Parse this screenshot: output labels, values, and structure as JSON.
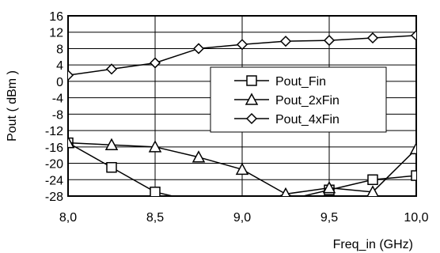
{
  "chart_data": {
    "type": "line",
    "xlabel": "Freq_in (GHz)",
    "ylabel": "Pout ( dBm )",
    "xlim": [
      8.0,
      10.0
    ],
    "ylim": [
      -28,
      16
    ],
    "x_ticks": [
      "8,0",
      "8,5",
      "9,0",
      "9,5",
      "10,0"
    ],
    "x_tick_values": [
      8.0,
      8.5,
      9.0,
      9.5,
      10.0
    ],
    "y_ticks": [
      16,
      12,
      8,
      4,
      0,
      -4,
      -8,
      -12,
      -16,
      -20,
      -24,
      -28
    ],
    "grid": true,
    "legend_position": "center-right",
    "x": [
      8.0,
      8.25,
      8.5,
      8.75,
      9.0,
      9.25,
      9.5,
      9.75,
      10.0
    ],
    "series": [
      {
        "name": "Pout_Fin",
        "marker": "square",
        "values": [
          -15,
          -21,
          -27,
          -29.5,
          -30,
          -29,
          -26.5,
          -24,
          -23
        ]
      },
      {
        "name": "Pout_2xFin",
        "marker": "triangle",
        "values": [
          -15,
          -15.5,
          -16,
          -18.5,
          -21.5,
          -27.5,
          -26,
          -27,
          -16.5
        ]
      },
      {
        "name": "Pout_4xFin",
        "marker": "diamond",
        "values": [
          1.5,
          3,
          4.5,
          8,
          9,
          9.8,
          10,
          10.6,
          11.2
        ]
      }
    ]
  }
}
